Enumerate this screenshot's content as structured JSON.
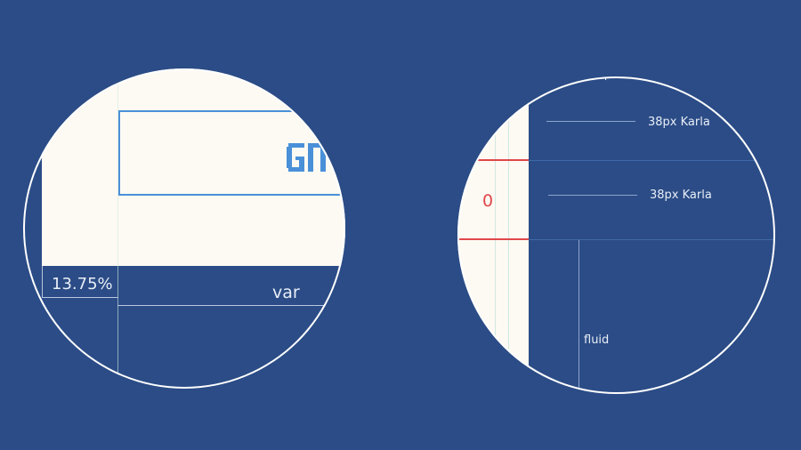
{
  "colors": {
    "background": "#2b4c86",
    "canvas": "#fdfaf3",
    "ring": "#ffffff",
    "measure_line": "#b9c6de",
    "red_marker": "#e0474a",
    "frame_blue": "#4a90d9"
  },
  "left_lens": {
    "percent_label": "13.75%",
    "var_label": "var",
    "logo_icon": "pixel-logo-icon"
  },
  "right_lens": {
    "font_label_top": "38px Karla",
    "font_label_bottom": "38px Karla",
    "zero_label": "0",
    "fluid_label": "fluid"
  }
}
